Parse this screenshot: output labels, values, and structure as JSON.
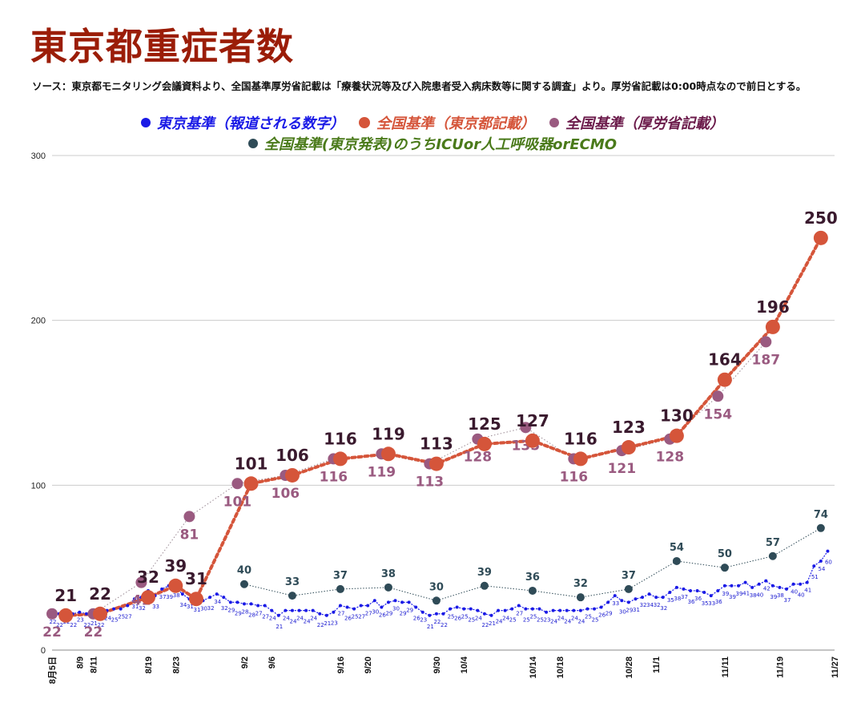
{
  "title": "東京都重症者数",
  "source": "ソース：東京都モニタリング会議資料より、全国基準厚労省記載は「療養状況等及び入院患者受入病床数等に関する調査」より。厚労省記載は0:00時点なので前日とする。",
  "colors": {
    "tokyo": "#1a1ae6",
    "national_tokyo": "#d5553a",
    "mhlw": "#9a5a80",
    "icu": "#2f4b57",
    "grid": "#cccccc"
  },
  "chart_data": {
    "type": "line",
    "title": "東京都重症者数",
    "ylim": [
      0,
      300
    ],
    "yticks": [
      0,
      100,
      200,
      300
    ],
    "grid": true,
    "legend_position": "top",
    "x_range": [
      "2020-08-05",
      "2020-11-27"
    ],
    "x_ticks": [
      {
        "date": "2020-08-05",
        "label": "8月5日"
      },
      {
        "date": "2020-08-09",
        "label": "8/9"
      },
      {
        "date": "2020-08-11",
        "label": "8/11"
      },
      {
        "date": "2020-08-19",
        "label": "8/19"
      },
      {
        "date": "2020-08-23",
        "label": "8/23"
      },
      {
        "date": "2020-09-02",
        "label": "9/2"
      },
      {
        "date": "2020-09-06",
        "label": "9/6"
      },
      {
        "date": "2020-09-16",
        "label": "9/16"
      },
      {
        "date": "2020-09-20",
        "label": "9/20"
      },
      {
        "date": "2020-09-30",
        "label": "9/30"
      },
      {
        "date": "2020-10-04",
        "label": "10/4"
      },
      {
        "date": "2020-10-14",
        "label": "10/14"
      },
      {
        "date": "2020-10-18",
        "label": "10/18"
      },
      {
        "date": "2020-10-28",
        "label": "10/28"
      },
      {
        "date": "2020-11-01",
        "label": "11/1"
      },
      {
        "date": "2020-11-11",
        "label": "11/11"
      },
      {
        "date": "2020-11-19",
        "label": "11/19"
      },
      {
        "date": "2020-11-27",
        "label": "11/27"
      }
    ],
    "series": [
      {
        "name": "東京基準（報道される数字）",
        "color": "#1a1ae6",
        "points": [
          {
            "x": "2020-08-05",
            "y": 22
          },
          {
            "x": "2020-08-06",
            "y": 22
          },
          {
            "x": "2020-08-07",
            "y": 22
          },
          {
            "x": "2020-08-08",
            "y": 22
          },
          {
            "x": "2020-08-09",
            "y": 23
          },
          {
            "x": "2020-08-10",
            "y": 22
          },
          {
            "x": "2020-08-11",
            "y": 21
          },
          {
            "x": "2020-08-12",
            "y": 22
          },
          {
            "x": "2020-08-13",
            "y": 24
          },
          {
            "x": "2020-08-14",
            "y": 25
          },
          {
            "x": "2020-08-15",
            "y": 25
          },
          {
            "x": "2020-08-16",
            "y": 27
          },
          {
            "x": "2020-08-17",
            "y": 31
          },
          {
            "x": "2020-08-18",
            "y": 32
          },
          {
            "x": "2020-08-19",
            "y": 36
          },
          {
            "x": "2020-08-20",
            "y": 33
          },
          {
            "x": "2020-08-21",
            "y": 37
          },
          {
            "x": "2020-08-22",
            "y": 39
          },
          {
            "x": "2020-08-23",
            "y": 38
          },
          {
            "x": "2020-08-24",
            "y": 34
          },
          {
            "x": "2020-08-25",
            "y": 31
          },
          {
            "x": "2020-08-26",
            "y": 31
          },
          {
            "x": "2020-08-27",
            "y": 30
          },
          {
            "x": "2020-08-28",
            "y": 32
          },
          {
            "x": "2020-08-29",
            "y": 34
          },
          {
            "x": "2020-08-30",
            "y": 32
          },
          {
            "x": "2020-08-31",
            "y": 29
          },
          {
            "x": "2020-09-01",
            "y": 29
          },
          {
            "x": "2020-09-02",
            "y": 28
          },
          {
            "x": "2020-09-03",
            "y": 28
          },
          {
            "x": "2020-09-04",
            "y": 27
          },
          {
            "x": "2020-09-05",
            "y": 27
          },
          {
            "x": "2020-09-06",
            "y": 24
          },
          {
            "x": "2020-09-07",
            "y": 21
          },
          {
            "x": "2020-09-08",
            "y": 24
          },
          {
            "x": "2020-09-09",
            "y": 24
          },
          {
            "x": "2020-09-10",
            "y": 24
          },
          {
            "x": "2020-09-11",
            "y": 24
          },
          {
            "x": "2020-09-12",
            "y": 24
          },
          {
            "x": "2020-09-13",
            "y": 22
          },
          {
            "x": "2020-09-14",
            "y": 21
          },
          {
            "x": "2020-09-15",
            "y": 23
          },
          {
            "x": "2020-09-16",
            "y": 27
          },
          {
            "x": "2020-09-17",
            "y": 26
          },
          {
            "x": "2020-09-18",
            "y": 25
          },
          {
            "x": "2020-09-19",
            "y": 27
          },
          {
            "x": "2020-09-20",
            "y": 27
          },
          {
            "x": "2020-09-21",
            "y": 30
          },
          {
            "x": "2020-09-22",
            "y": 26
          },
          {
            "x": "2020-09-23",
            "y": 29
          },
          {
            "x": "2020-09-24",
            "y": 30
          },
          {
            "x": "2020-09-25",
            "y": 29
          },
          {
            "x": "2020-09-26",
            "y": 29
          },
          {
            "x": "2020-09-27",
            "y": 26
          },
          {
            "x": "2020-09-28",
            "y": 23
          },
          {
            "x": "2020-09-29",
            "y": 21
          },
          {
            "x": "2020-09-30",
            "y": 22
          },
          {
            "x": "2020-10-01",
            "y": 22
          },
          {
            "x": "2020-10-02",
            "y": 25
          },
          {
            "x": "2020-10-03",
            "y": 26
          },
          {
            "x": "2020-10-04",
            "y": 25
          },
          {
            "x": "2020-10-05",
            "y": 25
          },
          {
            "x": "2020-10-06",
            "y": 24
          },
          {
            "x": "2020-10-07",
            "y": 22
          },
          {
            "x": "2020-10-08",
            "y": 21
          },
          {
            "x": "2020-10-09",
            "y": 24
          },
          {
            "x": "2020-10-10",
            "y": 24
          },
          {
            "x": "2020-10-11",
            "y": 25
          },
          {
            "x": "2020-10-12",
            "y": 27
          },
          {
            "x": "2020-10-13",
            "y": 25
          },
          {
            "x": "2020-10-14",
            "y": 25
          },
          {
            "x": "2020-10-15",
            "y": 25
          },
          {
            "x": "2020-10-16",
            "y": 23
          },
          {
            "x": "2020-10-17",
            "y": 24
          },
          {
            "x": "2020-10-18",
            "y": 24
          },
          {
            "x": "2020-10-19",
            "y": 24
          },
          {
            "x": "2020-10-20",
            "y": 24
          },
          {
            "x": "2020-10-21",
            "y": 24
          },
          {
            "x": "2020-10-22",
            "y": 25
          },
          {
            "x": "2020-10-23",
            "y": 25
          },
          {
            "x": "2020-10-24",
            "y": 26
          },
          {
            "x": "2020-10-25",
            "y": 29
          },
          {
            "x": "2020-10-26",
            "y": 33
          },
          {
            "x": "2020-10-27",
            "y": 30
          },
          {
            "x": "2020-10-28",
            "y": 29
          },
          {
            "x": "2020-10-29",
            "y": 31
          },
          {
            "x": "2020-10-30",
            "y": 32
          },
          {
            "x": "2020-10-31",
            "y": 34
          },
          {
            "x": "2020-11-01",
            "y": 32
          },
          {
            "x": "2020-11-02",
            "y": 32
          },
          {
            "x": "2020-11-03",
            "y": 35
          },
          {
            "x": "2020-11-04",
            "y": 38
          },
          {
            "x": "2020-11-05",
            "y": 37
          },
          {
            "x": "2020-11-06",
            "y": 36
          },
          {
            "x": "2020-11-07",
            "y": 36
          },
          {
            "x": "2020-11-08",
            "y": 35
          },
          {
            "x": "2020-11-09",
            "y": 33
          },
          {
            "x": "2020-11-10",
            "y": 36
          },
          {
            "x": "2020-11-11",
            "y": 39
          },
          {
            "x": "2020-11-12",
            "y": 39
          },
          {
            "x": "2020-11-13",
            "y": 39
          },
          {
            "x": "2020-11-14",
            "y": 41
          },
          {
            "x": "2020-11-15",
            "y": 38
          },
          {
            "x": "2020-11-16",
            "y": 40
          },
          {
            "x": "2020-11-17",
            "y": 42
          },
          {
            "x": "2020-11-18",
            "y": 39
          },
          {
            "x": "2020-11-19",
            "y": 38
          },
          {
            "x": "2020-11-20",
            "y": 37
          },
          {
            "x": "2020-11-21",
            "y": 40
          },
          {
            "x": "2020-11-22",
            "y": 40
          },
          {
            "x": "2020-11-23",
            "y": 41
          },
          {
            "x": "2020-11-24",
            "y": 51
          },
          {
            "x": "2020-11-25",
            "y": 54
          },
          {
            "x": "2020-11-26",
            "y": 60
          }
        ]
      },
      {
        "name": "全国基準（東京都記載）",
        "color": "#d5553a",
        "points": [
          {
            "x": "2020-08-07",
            "y": 21
          },
          {
            "x": "2020-08-12",
            "y": 22
          },
          {
            "x": "2020-08-19",
            "y": 32
          },
          {
            "x": "2020-08-23",
            "y": 39
          },
          {
            "x": "2020-08-26",
            "y": 31
          },
          {
            "x": "2020-09-03",
            "y": 101
          },
          {
            "x": "2020-09-09",
            "y": 106
          },
          {
            "x": "2020-09-16",
            "y": 116
          },
          {
            "x": "2020-09-23",
            "y": 119
          },
          {
            "x": "2020-09-30",
            "y": 113
          },
          {
            "x": "2020-10-07",
            "y": 125
          },
          {
            "x": "2020-10-14",
            "y": 127
          },
          {
            "x": "2020-10-21",
            "y": 116
          },
          {
            "x": "2020-10-28",
            "y": 123
          },
          {
            "x": "2020-11-04",
            "y": 130
          },
          {
            "x": "2020-11-11",
            "y": 164
          },
          {
            "x": "2020-11-18",
            "y": 196
          },
          {
            "x": "2020-11-25",
            "y": 250
          }
        ]
      },
      {
        "name": "全国基準（厚労省記載）",
        "color": "#9a5a80",
        "points": [
          {
            "x": "2020-08-05",
            "y": 22
          },
          {
            "x": "2020-08-11",
            "y": 22
          },
          {
            "x": "2020-08-18",
            "y": 41
          },
          {
            "x": "2020-08-25",
            "y": 81
          },
          {
            "x": "2020-09-01",
            "y": 101
          },
          {
            "x": "2020-09-08",
            "y": 106
          },
          {
            "x": "2020-09-15",
            "y": 116
          },
          {
            "x": "2020-09-22",
            "y": 119
          },
          {
            "x": "2020-09-29",
            "y": 113
          },
          {
            "x": "2020-10-06",
            "y": 128
          },
          {
            "x": "2020-10-13",
            "y": 135
          },
          {
            "x": "2020-10-20",
            "y": 116
          },
          {
            "x": "2020-10-27",
            "y": 121
          },
          {
            "x": "2020-11-03",
            "y": 128
          },
          {
            "x": "2020-11-10",
            "y": 154
          },
          {
            "x": "2020-11-17",
            "y": 187
          }
        ]
      },
      {
        "name": "全国基準(東京発表)のうちICUor人工呼吸器orECMO",
        "color": "#2f4b57",
        "points": [
          {
            "x": "2020-09-02",
            "y": 40
          },
          {
            "x": "2020-09-09",
            "y": 33
          },
          {
            "x": "2020-09-16",
            "y": 37
          },
          {
            "x": "2020-09-23",
            "y": 38
          },
          {
            "x": "2020-09-30",
            "y": 30
          },
          {
            "x": "2020-10-07",
            "y": 39
          },
          {
            "x": "2020-10-14",
            "y": 36
          },
          {
            "x": "2020-10-21",
            "y": 32
          },
          {
            "x": "2020-10-28",
            "y": 37
          },
          {
            "x": "2020-11-04",
            "y": 54
          },
          {
            "x": "2020-11-11",
            "y": 50
          },
          {
            "x": "2020-11-18",
            "y": 57
          },
          {
            "x": "2020-11-25",
            "y": 74
          }
        ]
      }
    ]
  }
}
